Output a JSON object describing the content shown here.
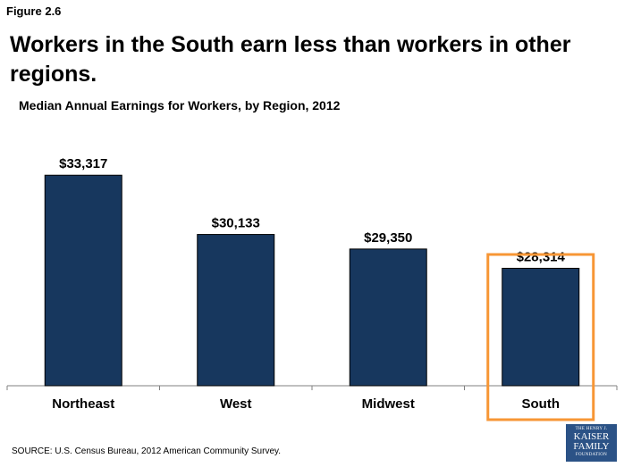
{
  "figure_label": "Figure 2.6",
  "title": "Workers in the South earn less than workers in other regions.",
  "chart_data": {
    "type": "bar",
    "title": "Median Annual Earnings for Workers, by Region,  2012",
    "categories": [
      "Northeast",
      "West",
      "Midwest",
      "South"
    ],
    "values": [
      33317,
      30133,
      29350,
      28314
    ],
    "data_labels": [
      "$33,317",
      "$30,133",
      "$29,350",
      "$28,314"
    ],
    "highlighted_category": "South",
    "ylim": [
      22000,
      34000
    ],
    "grid": false,
    "legend": "none",
    "bar_color": "#17375e",
    "highlight_color": "#f79635"
  },
  "source": "SOURCE: U.S. Census Bureau, 2012 American Community Survey.",
  "logo": {
    "line1": "THE HENRY J.",
    "line2": "KAISER",
    "line3": "FAMILY",
    "line4": "FOUNDATION"
  }
}
